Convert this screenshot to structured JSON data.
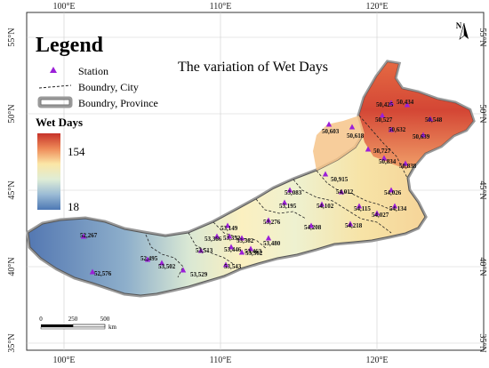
{
  "map": {
    "title": "The variation of Wet Days",
    "axes": {
      "lon_ticks": [
        "100°E",
        "110°E",
        "120°E"
      ],
      "lat_ticks": [
        "55°N",
        "50°N",
        "45°N",
        "40°N",
        "35°N"
      ]
    },
    "legend": {
      "heading": "Legend",
      "items": [
        {
          "label": "Station",
          "symbol": "purple-triangle"
        },
        {
          "label": "Boundry, City",
          "symbol": "dashed-line"
        },
        {
          "label": "Boundry, Province",
          "symbol": "double-gray-outline"
        }
      ],
      "ramp": {
        "title": "Wet Days",
        "max_label": "154",
        "min_label": "18",
        "colors": [
          "#c7322a",
          "#ee8a58",
          "#fbe6a6",
          "#dfedd6",
          "#9bbbd5",
          "#4d78b4"
        ]
      }
    },
    "scale_bar": {
      "labels": [
        "0",
        "250",
        "500"
      ],
      "unit": "km"
    },
    "north_arrow": {
      "label": "N"
    },
    "station_color": "#9b1fd8",
    "station_ids": [
      "50,425",
      "50,434",
      "50,527",
      "50,548",
      "50,603",
      "50,618",
      "50,632",
      "50,639",
      "50,727",
      "50,834",
      "50,838",
      "50,915",
      "53,083",
      "54,012",
      "54,026",
      "53,195",
      "54,102",
      "54,115",
      "54,134",
      "54,027",
      "54,218",
      "54,208",
      "53,276",
      "53,149",
      "53,366",
      "53,352",
      "53,362",
      "53,480",
      "53,513",
      "53,446",
      "53,463",
      "53,362",
      "52,495",
      "53,502",
      "52,267",
      "52,576",
      "53,529",
      "53,543"
    ]
  }
}
